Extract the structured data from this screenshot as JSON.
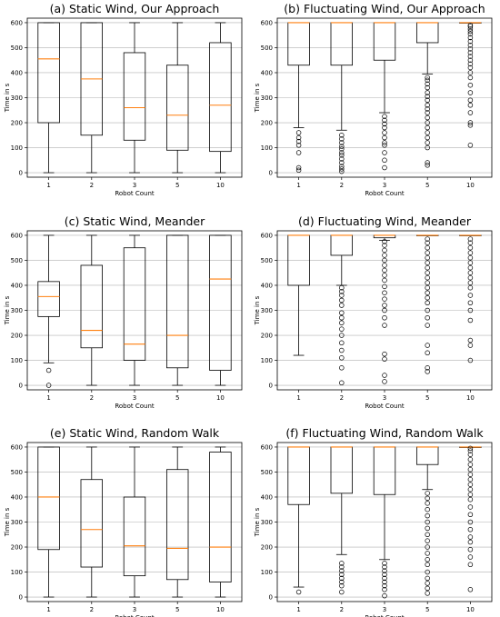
{
  "chart_data": [
    {
      "type": "box",
      "title": "(a) Static Wind, Our Approach",
      "xlabel": "Robot Count",
      "ylabel": "Time in s",
      "categories": [
        "1",
        "2",
        "3",
        "5",
        "10"
      ],
      "yticks": [
        0,
        100,
        200,
        300,
        400,
        500,
        600
      ],
      "ylim": [
        -18,
        618
      ],
      "grid": true,
      "boxes": [
        {
          "whisker_low": 0,
          "q1": 200,
          "median": 455,
          "q3": 600,
          "whisker_high": 600,
          "outliers": []
        },
        {
          "whisker_low": 0,
          "q1": 150,
          "median": 375,
          "q3": 600,
          "whisker_high": 600,
          "outliers": []
        },
        {
          "whisker_low": 0,
          "q1": 130,
          "median": 260,
          "q3": 480,
          "whisker_high": 600,
          "outliers": []
        },
        {
          "whisker_low": 0,
          "q1": 90,
          "median": 230,
          "q3": 430,
          "whisker_high": 600,
          "outliers": []
        },
        {
          "whisker_low": 0,
          "q1": 85,
          "median": 270,
          "q3": 520,
          "whisker_high": 600,
          "outliers": []
        }
      ]
    },
    {
      "type": "box",
      "title": "(b) Fluctuating Wind, Our Approach",
      "xlabel": "Robot Count",
      "ylabel": "Time in s",
      "categories": [
        "1",
        "2",
        "3",
        "5",
        "10"
      ],
      "yticks": [
        0,
        100,
        200,
        300,
        400,
        500,
        600
      ],
      "ylim": [
        -18,
        618
      ],
      "grid": true,
      "boxes": [
        {
          "whisker_low": 180,
          "q1": 430,
          "median": 600,
          "q3": 600,
          "whisker_high": 600,
          "outliers": [
            10,
            20,
            80,
            110,
            125,
            140,
            160
          ]
        },
        {
          "whisker_low": 170,
          "q1": 430,
          "median": 600,
          "q3": 600,
          "whisker_high": 600,
          "outliers": [
            5,
            15,
            25,
            40,
            55,
            70,
            80,
            95,
            105,
            120,
            135,
            150
          ]
        },
        {
          "whisker_low": 240,
          "q1": 450,
          "median": 600,
          "q3": 600,
          "whisker_high": 600,
          "outliers": [
            20,
            50,
            80,
            110,
            120,
            140,
            160,
            180,
            195,
            210,
            225
          ]
        },
        {
          "whisker_low": 395,
          "q1": 520,
          "median": 600,
          "q3": 600,
          "whisker_high": 600,
          "outliers": [
            30,
            40,
            100,
            120,
            140,
            160,
            180,
            200,
            220,
            240,
            255,
            270,
            290,
            305,
            320,
            340,
            355,
            370,
            380
          ]
        },
        {
          "whisker_low": 600,
          "q1": 600,
          "median": 600,
          "q3": 600,
          "whisker_high": 600,
          "outliers": [
            110,
            190,
            200,
            240,
            270,
            290,
            320,
            350,
            380,
            400,
            420,
            435,
            450,
            465,
            480,
            495,
            510,
            525,
            540,
            555,
            565,
            575,
            585,
            590
          ]
        }
      ]
    },
    {
      "type": "box",
      "title": "(c) Static Wind, Meander",
      "xlabel": "Robot Count",
      "ylabel": "Time in s",
      "categories": [
        "1",
        "2",
        "3",
        "5",
        "10"
      ],
      "yticks": [
        0,
        100,
        200,
        300,
        400,
        500,
        600
      ],
      "ylim": [
        -18,
        618
      ],
      "grid": true,
      "boxes": [
        {
          "whisker_low": 90,
          "q1": 275,
          "median": 355,
          "q3": 415,
          "whisker_high": 600,
          "outliers": [
            0,
            60
          ]
        },
        {
          "whisker_low": 0,
          "q1": 150,
          "median": 220,
          "q3": 480,
          "whisker_high": 600,
          "outliers": []
        },
        {
          "whisker_low": 0,
          "q1": 100,
          "median": 165,
          "q3": 550,
          "whisker_high": 600,
          "outliers": []
        },
        {
          "whisker_low": 0,
          "q1": 70,
          "median": 200,
          "q3": 600,
          "whisker_high": 600,
          "outliers": []
        },
        {
          "whisker_low": 0,
          "q1": 60,
          "median": 425,
          "q3": 600,
          "whisker_high": 600,
          "outliers": []
        }
      ]
    },
    {
      "type": "box",
      "title": "(d) Fluctuating Wind, Meander",
      "xlabel": "Robot Count",
      "ylabel": "Time in s",
      "categories": [
        "1",
        "2",
        "3",
        "5",
        "10"
      ],
      "yticks": [
        0,
        100,
        200,
        300,
        400,
        500,
        600
      ],
      "ylim": [
        -18,
        618
      ],
      "grid": true,
      "boxes": [
        {
          "whisker_low": 120,
          "q1": 400,
          "median": 600,
          "q3": 600,
          "whisker_high": 600,
          "outliers": []
        },
        {
          "whisker_low": 400,
          "q1": 520,
          "median": 600,
          "q3": 600,
          "whisker_high": 600,
          "outliers": [
            10,
            70,
            110,
            140,
            170,
            200,
            225,
            250,
            270,
            290,
            320,
            340,
            360,
            375,
            390
          ]
        },
        {
          "whisker_low": 580,
          "q1": 590,
          "median": 600,
          "q3": 600,
          "whisker_high": 600,
          "outliers": [
            15,
            40,
            105,
            125,
            240,
            270,
            300,
            320,
            345,
            370,
            395,
            420,
            440,
            460,
            480,
            500,
            520,
            540,
            560,
            575
          ]
        },
        {
          "whisker_low": 600,
          "q1": 600,
          "median": 600,
          "q3": 600,
          "whisker_high": 600,
          "outliers": [
            55,
            70,
            130,
            160,
            240,
            270,
            300,
            330,
            350,
            370,
            390,
            410,
            430,
            450,
            470,
            490,
            510,
            530,
            550,
            570,
            585
          ]
        },
        {
          "whisker_low": 600,
          "q1": 600,
          "median": 600,
          "q3": 600,
          "whisker_high": 600,
          "outliers": [
            100,
            160,
            180,
            260,
            300,
            330,
            360,
            390,
            410,
            430,
            450,
            470,
            490,
            510,
            530,
            550,
            570,
            585
          ]
        }
      ]
    },
    {
      "type": "box",
      "title": "(e) Static Wind, Random Walk",
      "xlabel": "Robot Count",
      "ylabel": "Time in s",
      "categories": [
        "1",
        "2",
        "3",
        "5",
        "10"
      ],
      "yticks": [
        0,
        100,
        200,
        300,
        400,
        500,
        600
      ],
      "ylim": [
        -18,
        618
      ],
      "grid": true,
      "boxes": [
        {
          "whisker_low": 0,
          "q1": 190,
          "median": 400,
          "q3": 600,
          "whisker_high": 600,
          "outliers": []
        },
        {
          "whisker_low": 0,
          "q1": 120,
          "median": 270,
          "q3": 470,
          "whisker_high": 600,
          "outliers": []
        },
        {
          "whisker_low": 0,
          "q1": 85,
          "median": 205,
          "q3": 400,
          "whisker_high": 600,
          "outliers": []
        },
        {
          "whisker_low": 0,
          "q1": 70,
          "median": 195,
          "q3": 510,
          "whisker_high": 600,
          "outliers": []
        },
        {
          "whisker_low": 0,
          "q1": 60,
          "median": 200,
          "q3": 580,
          "whisker_high": 600,
          "outliers": []
        }
      ]
    },
    {
      "type": "box",
      "title": "(f) Fluctuating Wind, Random Walk",
      "xlabel": "Robot Count",
      "ylabel": "Time in s",
      "categories": [
        "1",
        "2",
        "3",
        "5",
        "10"
      ],
      "yticks": [
        0,
        100,
        200,
        300,
        400,
        500,
        600
      ],
      "ylim": [
        -18,
        618
      ],
      "grid": true,
      "boxes": [
        {
          "whisker_low": 40,
          "q1": 370,
          "median": 600,
          "q3": 600,
          "whisker_high": 600,
          "outliers": [
            20
          ]
        },
        {
          "whisker_low": 170,
          "q1": 415,
          "median": 600,
          "q3": 600,
          "whisker_high": 600,
          "outliers": [
            20,
            45,
            60,
            75,
            90,
            105,
            120,
            135
          ]
        },
        {
          "whisker_low": 150,
          "q1": 410,
          "median": 600,
          "q3": 600,
          "whisker_high": 600,
          "outliers": [
            5,
            30,
            45,
            60,
            75,
            90,
            105,
            120,
            135
          ]
        },
        {
          "whisker_low": 430,
          "q1": 530,
          "median": 600,
          "q3": 600,
          "whisker_high": 600,
          "outliers": [
            15,
            35,
            55,
            75,
            100,
            130,
            150,
            175,
            200,
            225,
            250,
            275,
            300,
            325,
            350,
            375,
            395,
            415
          ]
        },
        {
          "whisker_low": 600,
          "q1": 600,
          "median": 600,
          "q3": 600,
          "whisker_high": 600,
          "outliers": [
            30,
            130,
            160,
            190,
            220,
            240,
            270,
            300,
            330,
            360,
            390,
            410,
            430,
            450,
            470,
            490,
            510,
            530,
            550,
            570,
            585,
            595
          ]
        }
      ]
    }
  ],
  "colors": {
    "median": "#ff7f0e",
    "box": "#000000",
    "grid": "#b0b0b0"
  }
}
